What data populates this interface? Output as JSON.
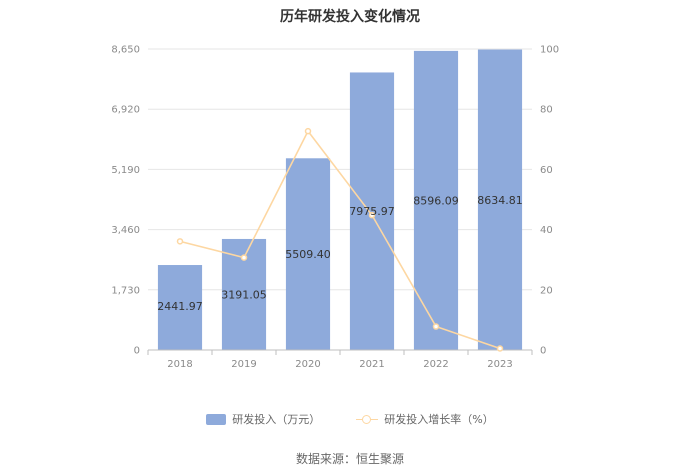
{
  "chart_data": {
    "type": "bar",
    "title": "历年研发投入变化情况",
    "categories": [
      "2018",
      "2019",
      "2020",
      "2021",
      "2022",
      "2023"
    ],
    "series": [
      {
        "name": "研发投入（万元）",
        "type": "bar",
        "axis": "left",
        "color": "#8eaadb",
        "values": [
          2441.97,
          3191.05,
          5509.4,
          7975.97,
          8596.09,
          8634.81
        ],
        "labels": [
          "2441.97",
          "3191.05",
          "5509.40",
          "7975.97",
          "8596.09",
          "8634.81"
        ]
      },
      {
        "name": "研发投入增长率（%）",
        "type": "line",
        "axis": "right",
        "color": "#fdd7a2",
        "values": [
          36.1,
          30.7,
          72.7,
          44.8,
          7.8,
          0.5
        ]
      }
    ],
    "y_left": {
      "ylim": [
        0,
        8650
      ],
      "ticks": [
        "0",
        "1,730",
        "3,460",
        "5,190",
        "6,920",
        "8,650"
      ]
    },
    "y_right": {
      "ylim": [
        0,
        100
      ],
      "ticks": [
        "0",
        "20",
        "40",
        "60",
        "80",
        "100"
      ]
    },
    "grid": true,
    "legend": "bottom-center"
  },
  "source_text": "数据来源：恒生聚源"
}
